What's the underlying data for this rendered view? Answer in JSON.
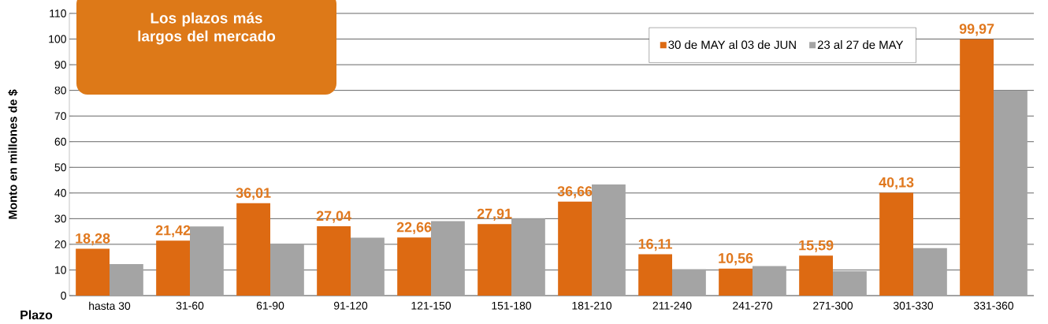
{
  "chart_data": {
    "type": "bar",
    "title": "Los plazos más largos del mercado",
    "xlabel": "Plazo",
    "ylabel": "Monto en  millones de $",
    "categories": [
      "hasta 30",
      "31-60",
      "61-90",
      "91-120",
      "121-150",
      "151-180",
      "181-210",
      "211-240",
      "241-270",
      "271-300",
      "301-330",
      "331-360"
    ],
    "series": [
      {
        "name": "30 de MAY al 03 de JUN",
        "color": "#dd6a12",
        "values": [
          18.28,
          21.42,
          36.01,
          27.04,
          22.66,
          27.91,
          36.66,
          16.11,
          10.56,
          15.59,
          40.13,
          99.97
        ],
        "value_labels": [
          "18,28",
          "21,42",
          "36,01",
          "27,04",
          "22,66",
          "27,91",
          "36,66",
          "16,11",
          "10,56",
          "15,59",
          "40,13",
          "99,97"
        ]
      },
      {
        "name": "23 al 27 de MAY",
        "color": "#a4a4a4",
        "values": [
          12.3,
          27.0,
          20.0,
          22.6,
          29.0,
          30.0,
          43.3,
          10.3,
          11.5,
          9.5,
          18.5,
          80.0
        ]
      }
    ],
    "ylim": [
      0,
      110
    ],
    "yticks": [
      0,
      10,
      20,
      30,
      40,
      50,
      60,
      70,
      80,
      90,
      100,
      110
    ],
    "grid": "y",
    "legend": "top right"
  }
}
